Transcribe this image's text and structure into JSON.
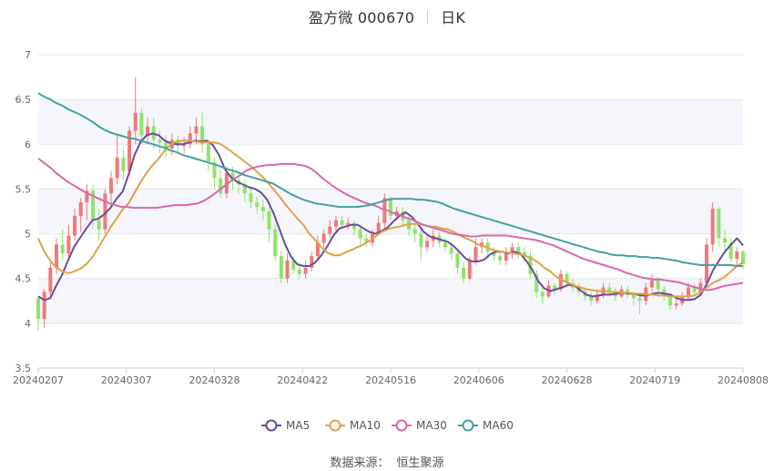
{
  "header": {
    "name": "盈方微 000670",
    "period": "日K"
  },
  "footer": {
    "source_label": "数据来源：",
    "source_name": "恒生聚源"
  },
  "colors": {
    "up": "#f0787a",
    "down": "#8fe36a",
    "ma5": "#6a4c9c",
    "ma10": "#e0a24a",
    "ma30": "#d869ac",
    "ma60": "#46a0a0",
    "band": "#f5f6fb"
  },
  "chart_data": {
    "type": "candlestick",
    "title": "盈方微 000670 日K",
    "ylim": [
      3.5,
      7
    ],
    "y_ticks": [
      "3.5",
      "4",
      "4.5",
      "5",
      "5.5",
      "6",
      "6.5",
      "7"
    ],
    "x_ticks": [
      "20240207",
      "20240307",
      "20240328",
      "20240422",
      "20240516",
      "20240606",
      "20240628",
      "20240719",
      "20240808"
    ],
    "legend": [
      "MA5",
      "MA10",
      "MA30",
      "MA60"
    ],
    "candles": [
      [
        4.28,
        4.05,
        4.3,
        3.92
      ],
      [
        4.05,
        4.35,
        4.38,
        3.95
      ],
      [
        4.35,
        4.62,
        4.68,
        4.3
      ],
      [
        4.62,
        4.88,
        4.95,
        4.55
      ],
      [
        4.88,
        4.78,
        5.05,
        4.7
      ],
      [
        4.78,
        4.98,
        5.1,
        4.72
      ],
      [
        4.98,
        5.2,
        5.28,
        4.92
      ],
      [
        5.2,
        5.35,
        5.4,
        5.02
      ],
      [
        5.35,
        5.48,
        5.55,
        5.15
      ],
      [
        5.48,
        5.15,
        5.55,
        5.05
      ],
      [
        5.15,
        5.05,
        5.28,
        4.92
      ],
      [
        5.05,
        5.45,
        5.5,
        5.0
      ],
      [
        5.45,
        5.62,
        5.7,
        5.3
      ],
      [
        5.62,
        5.85,
        6.1,
        5.55
      ],
      [
        5.85,
        5.7,
        5.95,
        5.6
      ],
      [
        5.7,
        6.15,
        6.2,
        5.65
      ],
      [
        6.15,
        6.35,
        6.75,
        6.0
      ],
      [
        6.35,
        6.1,
        6.4,
        6.0
      ],
      [
        6.1,
        6.2,
        6.3,
        6.0
      ],
      [
        6.2,
        6.05,
        6.3,
        5.95
      ],
      [
        6.05,
        6.02,
        6.15,
        5.9
      ],
      [
        6.02,
        5.95,
        6.1,
        5.85
      ],
      [
        5.95,
        6.05,
        6.12,
        5.88
      ],
      [
        6.05,
        5.98,
        6.1,
        5.92
      ],
      [
        5.98,
        6.0,
        6.08,
        5.9
      ],
      [
        6.0,
        6.12,
        6.2,
        5.95
      ],
      [
        6.12,
        6.2,
        6.3,
        6.0
      ],
      [
        6.2,
        6.0,
        6.35,
        5.9
      ],
      [
        6.0,
        5.8,
        6.05,
        5.7
      ],
      [
        5.8,
        5.62,
        5.85,
        5.5
      ],
      [
        5.62,
        5.45,
        5.7,
        5.4
      ],
      [
        5.45,
        5.68,
        5.75,
        5.4
      ],
      [
        5.68,
        5.6,
        5.75,
        5.5
      ],
      [
        5.6,
        5.55,
        5.65,
        5.45
      ],
      [
        5.55,
        5.45,
        5.6,
        5.35
      ],
      [
        5.45,
        5.35,
        5.5,
        5.28
      ],
      [
        5.35,
        5.3,
        5.42,
        5.22
      ],
      [
        5.3,
        5.25,
        5.38,
        5.15
      ],
      [
        5.25,
        5.05,
        5.3,
        4.9
      ],
      [
        5.05,
        4.75,
        5.1,
        4.7
      ],
      [
        4.75,
        4.5,
        4.8,
        4.45
      ],
      [
        4.5,
        4.7,
        4.78,
        4.45
      ],
      [
        4.7,
        4.6,
        4.75,
        4.55
      ],
      [
        4.6,
        4.55,
        4.65,
        4.5
      ],
      [
        4.55,
        4.62,
        4.7,
        4.5
      ],
      [
        4.62,
        4.75,
        4.8,
        4.58
      ],
      [
        4.75,
        4.9,
        4.98,
        4.7
      ],
      [
        4.9,
        5.0,
        5.05,
        4.85
      ],
      [
        5.0,
        5.08,
        5.15,
        4.95
      ],
      [
        5.08,
        5.15,
        5.2,
        5.02
      ],
      [
        5.15,
        5.1,
        5.2,
        5.05
      ],
      [
        5.1,
        5.12,
        5.18,
        5.05
      ],
      [
        5.12,
        5.05,
        5.15,
        4.98
      ],
      [
        5.05,
        4.95,
        5.1,
        4.88
      ],
      [
        4.95,
        4.9,
        5.0,
        4.85
      ],
      [
        4.9,
        5.0,
        5.05,
        4.85
      ],
      [
        5.0,
        5.12,
        5.2,
        4.98
      ],
      [
        5.12,
        5.4,
        5.45,
        5.05
      ],
      [
        5.4,
        5.2,
        5.42,
        5.15
      ],
      [
        5.2,
        5.25,
        5.3,
        5.15
      ],
      [
        5.25,
        5.15,
        5.3,
        5.08
      ],
      [
        5.15,
        5.05,
        5.2,
        4.98
      ],
      [
        5.05,
        5.0,
        5.1,
        4.9
      ],
      [
        5.0,
        4.85,
        5.05,
        4.7
      ],
      [
        4.85,
        4.92,
        5.0,
        4.8
      ],
      [
        4.92,
        4.98,
        5.05,
        4.85
      ],
      [
        4.98,
        4.9,
        5.02,
        4.85
      ],
      [
        4.9,
        4.85,
        4.95,
        4.8
      ],
      [
        4.85,
        4.78,
        4.9,
        4.7
      ],
      [
        4.78,
        4.62,
        4.82,
        4.55
      ],
      [
        4.62,
        4.5,
        4.68,
        4.45
      ],
      [
        4.5,
        4.7,
        4.75,
        4.48
      ],
      [
        4.7,
        4.85,
        4.95,
        4.65
      ],
      [
        4.85,
        4.9,
        4.95,
        4.78
      ],
      [
        4.9,
        4.8,
        4.95,
        4.72
      ],
      [
        4.8,
        4.75,
        4.85,
        4.7
      ],
      [
        4.75,
        4.7,
        4.8,
        4.65
      ],
      [
        4.7,
        4.78,
        4.85,
        4.65
      ],
      [
        4.78,
        4.85,
        4.9,
        4.72
      ],
      [
        4.85,
        4.8,
        4.9,
        4.72
      ],
      [
        4.8,
        4.75,
        4.85,
        4.68
      ],
      [
        4.75,
        4.55,
        4.8,
        4.5
      ],
      [
        4.55,
        4.35,
        4.6,
        4.28
      ],
      [
        4.35,
        4.3,
        4.4,
        4.22
      ],
      [
        4.3,
        4.42,
        4.48,
        4.28
      ],
      [
        4.42,
        4.38,
        4.45,
        4.32
      ],
      [
        4.38,
        4.55,
        4.6,
        4.35
      ],
      [
        4.55,
        4.45,
        4.58,
        4.4
      ],
      [
        4.45,
        4.4,
        4.5,
        4.35
      ],
      [
        4.4,
        4.35,
        4.45,
        4.3
      ],
      [
        4.35,
        4.3,
        4.4,
        4.25
      ],
      [
        4.3,
        4.25,
        4.35,
        4.2
      ],
      [
        4.25,
        4.32,
        4.38,
        4.22
      ],
      [
        4.32,
        4.4,
        4.45,
        4.28
      ],
      [
        4.4,
        4.35,
        4.45,
        4.3
      ],
      [
        4.35,
        4.3,
        4.4,
        4.25
      ],
      [
        4.3,
        4.38,
        4.42,
        4.28
      ],
      [
        4.38,
        4.32,
        4.42,
        4.28
      ],
      [
        4.32,
        4.28,
        4.35,
        4.2
      ],
      [
        4.28,
        4.25,
        4.32,
        4.1
      ],
      [
        4.25,
        4.4,
        4.45,
        4.2
      ],
      [
        4.4,
        4.48,
        4.55,
        4.35
      ],
      [
        4.48,
        4.38,
        4.52,
        4.32
      ],
      [
        4.38,
        4.3,
        4.42,
        4.25
      ],
      [
        4.3,
        4.2,
        4.32,
        4.15
      ],
      [
        4.2,
        4.22,
        4.28,
        4.15
      ],
      [
        4.22,
        4.3,
        4.35,
        4.2
      ],
      [
        4.3,
        4.4,
        4.45,
        4.25
      ],
      [
        4.4,
        4.35,
        4.45,
        4.3
      ],
      [
        4.35,
        4.45,
        4.5,
        4.32
      ],
      [
        4.45,
        4.88,
        4.95,
        4.4
      ],
      [
        4.88,
        5.28,
        5.35,
        4.8
      ],
      [
        5.28,
        4.95,
        5.3,
        4.85
      ],
      [
        4.95,
        4.9,
        5.05,
        4.8
      ],
      [
        4.9,
        4.72,
        4.95,
        4.68
      ],
      [
        4.72,
        4.8,
        4.85,
        4.65
      ],
      [
        4.8,
        4.66,
        4.82,
        4.6
      ]
    ],
    "series": [
      {
        "name": "MA5",
        "values": [
          4.3,
          4.26,
          4.28,
          4.42,
          4.55,
          4.71,
          4.86,
          4.96,
          5.06,
          5.15,
          5.17,
          5.22,
          5.29,
          5.39,
          5.47,
          5.66,
          5.88,
          6.03,
          6.1,
          6.12,
          6.1,
          6.04,
          6.01,
          6.0,
          6.0,
          6.02,
          6.04,
          6.03,
          6.04,
          5.99,
          5.88,
          5.72,
          5.63,
          5.58,
          5.55,
          5.52,
          5.5,
          5.46,
          5.38,
          5.24,
          5.06,
          4.88,
          4.74,
          4.66,
          4.64,
          4.64,
          4.68,
          4.76,
          4.86,
          4.98,
          5.06,
          5.08,
          5.1,
          5.1,
          5.06,
          5.02,
          5.0,
          5.03,
          5.07,
          5.14,
          5.2,
          5.24,
          5.19,
          5.11,
          5.02,
          4.97,
          4.95,
          4.93,
          4.91,
          4.86,
          4.79,
          4.72,
          4.69,
          4.69,
          4.71,
          4.77,
          4.8,
          4.8,
          4.78,
          4.8,
          4.78,
          4.7,
          4.6,
          4.47,
          4.39,
          4.36,
          4.38,
          4.4,
          4.43,
          4.42,
          4.37,
          4.32,
          4.3,
          4.31,
          4.32,
          4.32,
          4.33,
          4.34,
          4.33,
          4.33,
          4.31,
          4.31,
          4.33,
          4.34,
          4.33,
          4.32,
          4.28,
          4.26,
          4.26,
          4.27,
          4.32,
          4.44,
          4.59,
          4.7,
          4.8,
          4.88,
          4.95,
          4.87
        ]
      },
      {
        "name": "MA10",
        "values": [
          4.95,
          4.8,
          4.7,
          4.62,
          4.58,
          4.56,
          4.58,
          4.61,
          4.66,
          4.74,
          4.85,
          4.96,
          5.07,
          5.17,
          5.27,
          5.34,
          5.46,
          5.58,
          5.68,
          5.77,
          5.84,
          5.93,
          6.0,
          6.03,
          6.04,
          6.04,
          6.03,
          6.02,
          6.02,
          6.02,
          6.01,
          5.97,
          5.92,
          5.87,
          5.82,
          5.77,
          5.71,
          5.65,
          5.58,
          5.5,
          5.42,
          5.33,
          5.25,
          5.17,
          5.1,
          5.0,
          4.93,
          4.85,
          4.79,
          4.76,
          4.76,
          4.79,
          4.82,
          4.85,
          4.88,
          4.92,
          4.97,
          5.02,
          5.05,
          5.07,
          5.08,
          5.1,
          5.11,
          5.11,
          5.1,
          5.08,
          5.08,
          5.06,
          5.05,
          5.02,
          4.98,
          4.95,
          4.92,
          4.88,
          4.86,
          4.83,
          4.81,
          4.8,
          4.79,
          4.78,
          4.77,
          4.75,
          4.72,
          4.68,
          4.62,
          4.58,
          4.52,
          4.48,
          4.45,
          4.42,
          4.4,
          4.38,
          4.37,
          4.36,
          4.36,
          4.35,
          4.35,
          4.34,
          4.34,
          4.33,
          4.33,
          4.32,
          4.32,
          4.31,
          4.31,
          4.3,
          4.3,
          4.3,
          4.3,
          4.31,
          4.35,
          4.4,
          4.45,
          4.48,
          4.52,
          4.58,
          4.64,
          4.68
        ]
      },
      {
        "name": "MA30",
        "values": [
          5.84,
          5.79,
          5.74,
          5.68,
          5.63,
          5.58,
          5.54,
          5.5,
          5.46,
          5.43,
          5.4,
          5.37,
          5.34,
          5.32,
          5.3,
          5.3,
          5.29,
          5.29,
          5.29,
          5.29,
          5.29,
          5.3,
          5.31,
          5.32,
          5.32,
          5.32,
          5.33,
          5.34,
          5.37,
          5.41,
          5.46,
          5.51,
          5.56,
          5.61,
          5.65,
          5.7,
          5.73,
          5.75,
          5.76,
          5.77,
          5.77,
          5.78,
          5.78,
          5.78,
          5.77,
          5.76,
          5.73,
          5.68,
          5.62,
          5.57,
          5.52,
          5.48,
          5.44,
          5.41,
          5.38,
          5.35,
          5.33,
          5.31,
          5.28,
          5.26,
          5.23,
          5.21,
          5.18,
          5.16,
          5.13,
          5.1,
          5.08,
          5.06,
          5.04,
          5.02,
          5.0,
          4.99,
          4.98,
          4.97,
          4.97,
          4.98,
          4.98,
          4.98,
          4.98,
          4.98,
          4.97,
          4.96,
          4.95,
          4.94,
          4.93,
          4.91,
          4.89,
          4.87,
          4.84,
          4.81,
          4.78,
          4.75,
          4.72,
          4.7,
          4.68,
          4.66,
          4.64,
          4.62,
          4.6,
          4.57,
          4.55,
          4.53,
          4.51,
          4.5,
          4.49,
          4.49,
          4.48,
          4.47,
          4.46,
          4.44,
          4.42,
          4.4,
          4.38,
          4.37,
          4.38,
          4.4,
          4.42,
          4.43,
          4.44,
          4.45
        ]
      },
      {
        "name": "MA60",
        "values": [
          6.57,
          6.53,
          6.5,
          6.46,
          6.43,
          6.39,
          6.36,
          6.33,
          6.29,
          6.25,
          6.2,
          6.16,
          6.13,
          6.11,
          6.09,
          6.07,
          6.06,
          6.04,
          6.02,
          6.0,
          5.98,
          5.96,
          5.93,
          5.91,
          5.88,
          5.86,
          5.84,
          5.82,
          5.8,
          5.78,
          5.76,
          5.73,
          5.71,
          5.69,
          5.66,
          5.64,
          5.62,
          5.6,
          5.58,
          5.56,
          5.52,
          5.48,
          5.44,
          5.41,
          5.38,
          5.36,
          5.34,
          5.33,
          5.32,
          5.31,
          5.3,
          5.3,
          5.3,
          5.3,
          5.31,
          5.32,
          5.34,
          5.36,
          5.38,
          5.39,
          5.39,
          5.39,
          5.39,
          5.38,
          5.38,
          5.37,
          5.36,
          5.34,
          5.31,
          5.28,
          5.26,
          5.24,
          5.22,
          5.2,
          5.18,
          5.16,
          5.14,
          5.12,
          5.1,
          5.08,
          5.06,
          5.04,
          5.02,
          5.0,
          4.98,
          4.96,
          4.94,
          4.92,
          4.9,
          4.88,
          4.86,
          4.84,
          4.82,
          4.8,
          4.79,
          4.77,
          4.76,
          4.76,
          4.75,
          4.75,
          4.74,
          4.74,
          4.73,
          4.73,
          4.72,
          4.71,
          4.7,
          4.68,
          4.67,
          4.66,
          4.65,
          4.65,
          4.65,
          4.65,
          4.65,
          4.65,
          4.64,
          4.64
        ]
      }
    ]
  }
}
